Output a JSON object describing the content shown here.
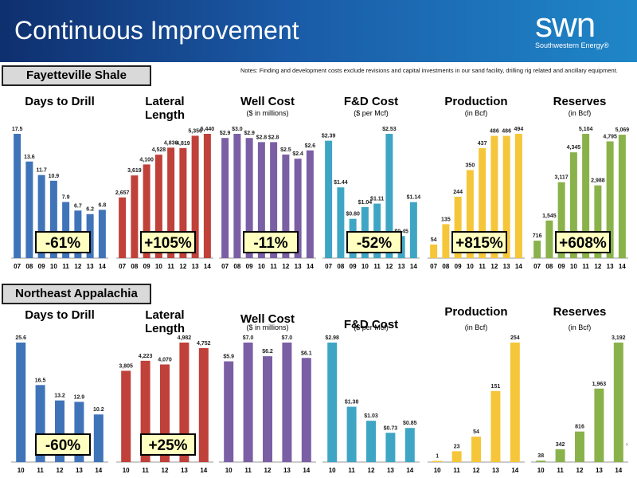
{
  "header": {
    "title": "Continuous Improvement",
    "logo_main": "swn",
    "logo_sub": "Southwestern Energy®"
  },
  "notes": "Notes: Finding and development costs exclude revisions and capital investments in our sand facility, drilling rig related and ancillary equipment.",
  "page_marker": "›",
  "sections": [
    {
      "label": "Fayetteville Shale"
    },
    {
      "label": "Northeast Appalachia"
    }
  ],
  "colors": {
    "blue": "#3f74b9",
    "red": "#c0403a",
    "purple": "#7b5fa5",
    "teal": "#3ea6c4",
    "yellow": "#f6c63a",
    "green": "#8ab24a",
    "header_dark": "#0f2f6e",
    "header_light": "#1f86c8"
  },
  "chart_data": [
    {
      "section": "Fayetteville Shale",
      "type": "bar",
      "title": [
        "Days to Drill"
      ],
      "subtitle": "",
      "color": "blue",
      "categories": [
        "07",
        "08",
        "09",
        "10",
        "11",
        "12",
        "13",
        "14"
      ],
      "values": [
        17.5,
        13.6,
        11.7,
        10.9,
        7.9,
        6.7,
        6.2,
        6.8
      ],
      "labels": [
        "17.5",
        "13.6",
        "11.7",
        "10.9",
        "7.9",
        "6.7",
        "6.2",
        "6.8"
      ],
      "ymax": 17.5,
      "callout": "-61%"
    },
    {
      "section": "Fayetteville Shale",
      "type": "bar",
      "title": [
        "Lateral",
        "Length"
      ],
      "subtitle": "",
      "color": "red",
      "categories": [
        "07",
        "08",
        "09",
        "10",
        "11",
        "12",
        "13",
        "14"
      ],
      "values": [
        2657,
        3619,
        4100,
        4528,
        4836,
        4819,
        5356,
        5440
      ],
      "labels": [
        "2,657",
        "3,619",
        "4,100",
        "4,528",
        "4,836",
        "4,819",
        "5,356",
        "5,440"
      ],
      "ymax": 5440,
      "callout": "+105%"
    },
    {
      "section": "Fayetteville Shale",
      "type": "bar",
      "title": [
        "Well Cost"
      ],
      "subtitle": "($ in millions)",
      "color": "purple",
      "categories": [
        "07",
        "08",
        "09",
        "10",
        "11",
        "12",
        "13",
        "14"
      ],
      "values": [
        2.9,
        3.0,
        2.9,
        2.8,
        2.8,
        2.5,
        2.4,
        2.6
      ],
      "labels": [
        "$2.9",
        "$3.0",
        "$2.9",
        "$2.8",
        "$2.8",
        "$2.5",
        "$2.4",
        "$2.6"
      ],
      "ymax": 3.0,
      "callout": "-11%"
    },
    {
      "section": "Fayetteville Shale",
      "type": "bar",
      "title": [
        "F&D Cost"
      ],
      "subtitle": "($ per Mcf)",
      "color": "teal",
      "categories": [
        "07",
        "08",
        "09",
        "10",
        "11",
        "12",
        "13",
        "14"
      ],
      "values": [
        2.39,
        1.44,
        0.8,
        1.04,
        1.11,
        2.53,
        0.45,
        1.14
      ],
      "labels": [
        "$2.39",
        "$1.44",
        "$0.80",
        "$1.04",
        "$1.11",
        "$2.53",
        "$0.45",
        "$1.14"
      ],
      "ymax": 2.53,
      "callout": "-52%"
    },
    {
      "section": "Fayetteville Shale",
      "type": "bar",
      "title": [
        "Production"
      ],
      "subtitle": "(in Bcf)",
      "color": "yellow",
      "categories": [
        "07",
        "08",
        "09",
        "10",
        "11",
        "12",
        "13",
        "14"
      ],
      "values": [
        54,
        135,
        244,
        350,
        437,
        486,
        486,
        494
      ],
      "labels": [
        "54",
        "135",
        "244",
        "350",
        "437",
        "486",
        "486",
        "494"
      ],
      "ymax": 494,
      "callout": "+815%"
    },
    {
      "section": "Fayetteville Shale",
      "type": "bar",
      "title": [
        "Reserves"
      ],
      "subtitle": "(in Bcf)",
      "color": "green",
      "categories": [
        "07",
        "08",
        "09",
        "10",
        "11",
        "12",
        "13",
        "14"
      ],
      "values": [
        716,
        1545,
        3117,
        4345,
        5104,
        2988,
        4795,
        5069
      ],
      "labels": [
        "716",
        "1,545",
        "3,117",
        "4,345",
        "5,104",
        "2,988",
        "4,795",
        "5,069"
      ],
      "ymax": 5104,
      "callout": "+608%"
    },
    {
      "section": "Northeast Appalachia",
      "type": "bar",
      "title": [
        "Days to Drill"
      ],
      "subtitle": "",
      "color": "blue",
      "categories": [
        "10",
        "11",
        "12",
        "13",
        "14"
      ],
      "values": [
        25.6,
        16.5,
        13.2,
        12.9,
        10.2
      ],
      "labels": [
        "25.6",
        "16.5",
        "13.2",
        "12.9",
        "10.2"
      ],
      "ymax": 25.6,
      "callout": "-60%"
    },
    {
      "section": "Northeast Appalachia",
      "type": "bar",
      "title": [
        "Lateral",
        "Length"
      ],
      "subtitle": "",
      "color": "red",
      "categories": [
        "10",
        "11",
        "12",
        "13",
        "14"
      ],
      "values": [
        3805,
        4223,
        4070,
        4982,
        4752
      ],
      "labels": [
        "3,805",
        "4,223",
        "4,070",
        "4,982",
        "4,752"
      ],
      "ymax": 4982,
      "callout": "+25%"
    },
    {
      "section": "Northeast Appalachia",
      "type": "bar",
      "title": [
        "Well Cost"
      ],
      "subtitle": "($ in millions)",
      "color": "purple",
      "categories": [
        "10",
        "11",
        "12",
        "13",
        "14"
      ],
      "values": [
        5.9,
        7.0,
        6.2,
        7.0,
        6.1
      ],
      "labels": [
        "$5.9",
        "$7.0",
        "$6.2",
        "$7.0",
        "$6.1"
      ],
      "ymax": 7.0,
      "callout": ""
    },
    {
      "section": "Northeast Appalachia",
      "type": "bar",
      "title": [
        "F&D Cost"
      ],
      "subtitle": "($ per Mcf)",
      "color": "teal",
      "categories": [
        "10",
        "11",
        "12",
        "13",
        "14"
      ],
      "values": [
        2.98,
        1.38,
        1.03,
        0.73,
        0.85
      ],
      "labels": [
        "$2.98",
        "$1.38",
        "$1.03",
        "$0.73",
        "$0.85"
      ],
      "ymax": 2.98,
      "callout": ""
    },
    {
      "section": "Northeast Appalachia",
      "type": "bar",
      "title": [
        "Production"
      ],
      "subtitle": "(in Bcf)",
      "color": "yellow",
      "categories": [
        "10",
        "11",
        "12",
        "13",
        "14"
      ],
      "values": [
        1,
        23,
        54,
        151,
        254
      ],
      "labels": [
        "1",
        "23",
        "54",
        "151",
        "254"
      ],
      "ymax": 254,
      "callout": ""
    },
    {
      "section": "Northeast Appalachia",
      "type": "bar",
      "title": [
        "Reserves"
      ],
      "subtitle": "(in Bcf)",
      "color": "green",
      "categories": [
        "10",
        "11",
        "12",
        "13",
        "14"
      ],
      "values": [
        38,
        342,
        816,
        1963,
        3192
      ],
      "labels": [
        "38",
        "342",
        "816",
        "1,963",
        "3,192"
      ],
      "ymax": 3192,
      "callout": ""
    }
  ]
}
